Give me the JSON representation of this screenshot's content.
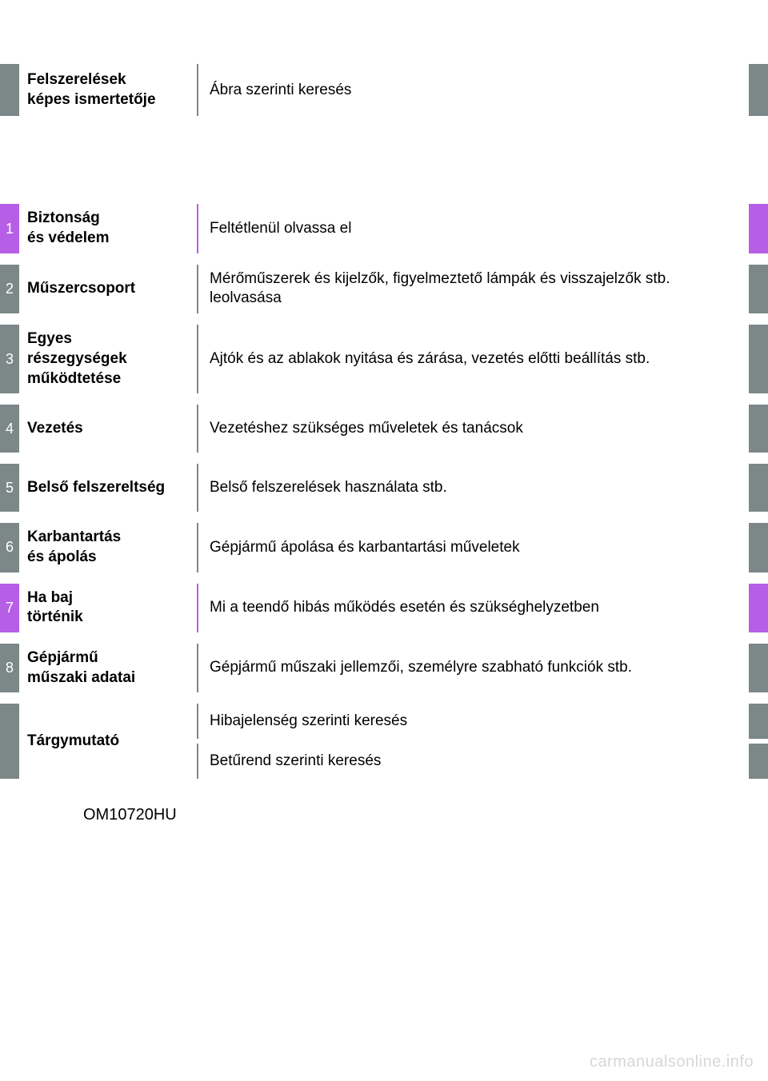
{
  "colors": {
    "grey": "#7c8788",
    "purple": "#b65ee6",
    "text": "#000000",
    "background": "#ffffff",
    "watermark": "#d7d7d7"
  },
  "typography": {
    "font_family": "Arial, Helvetica, sans-serif",
    "title_fontsize_pt": 14,
    "body_fontsize_pt": 14,
    "title_weight": "bold"
  },
  "header": {
    "title_line1": "Felszerelések",
    "title_line2": "képes ismertetője",
    "description": "Ábra szerinti keresés"
  },
  "sections": [
    {
      "num": "1",
      "variant": "purple",
      "title_lines": [
        "Biztonság",
        "és védelem"
      ],
      "description": "Feltétlenül olvassa el"
    },
    {
      "num": "2",
      "variant": "grey",
      "title_lines": [
        "Műszercsoport"
      ],
      "description": "Mérőműszerek és kijelzők, figyelmeztető lámpák és visszajelzők stb. leolvasása"
    },
    {
      "num": "3",
      "variant": "grey",
      "title_lines": [
        "Egyes",
        "részegységek",
        "működtetése"
      ],
      "description": "Ajtók és az ablakok nyitása és zárása, vezetés előtti beállítás stb."
    },
    {
      "num": "4",
      "variant": "grey",
      "title_lines": [
        "Vezetés"
      ],
      "description": "Vezetéshez szükséges műveletek és tanácsok"
    },
    {
      "num": "5",
      "variant": "grey",
      "title_lines": [
        "Belső felszereltség"
      ],
      "description": "Belső felszerelések használata stb."
    },
    {
      "num": "6",
      "variant": "grey",
      "title_lines": [
        "Karbantartás",
        "és ápolás"
      ],
      "description": "Gépjármű ápolása és karbantartási műveletek"
    },
    {
      "num": "7",
      "variant": "purple",
      "title_lines": [
        "Ha baj",
        "történik"
      ],
      "description": "Mi a teendő hibás működés esetén és szükséghelyzetben"
    },
    {
      "num": "8",
      "variant": "grey",
      "title_lines": [
        "Gépjármű",
        "műszaki adatai"
      ],
      "description": "Gépjármű műszaki jellemzői, személyre szabható funkciók stb."
    }
  ],
  "index": {
    "title": "Tárgymutató",
    "entries": [
      "Hibajelenség szerinti keresés",
      "Betűrend szerinti keresés"
    ]
  },
  "doc_code": "OM10720HU",
  "watermark": "carmanualsonline.info"
}
